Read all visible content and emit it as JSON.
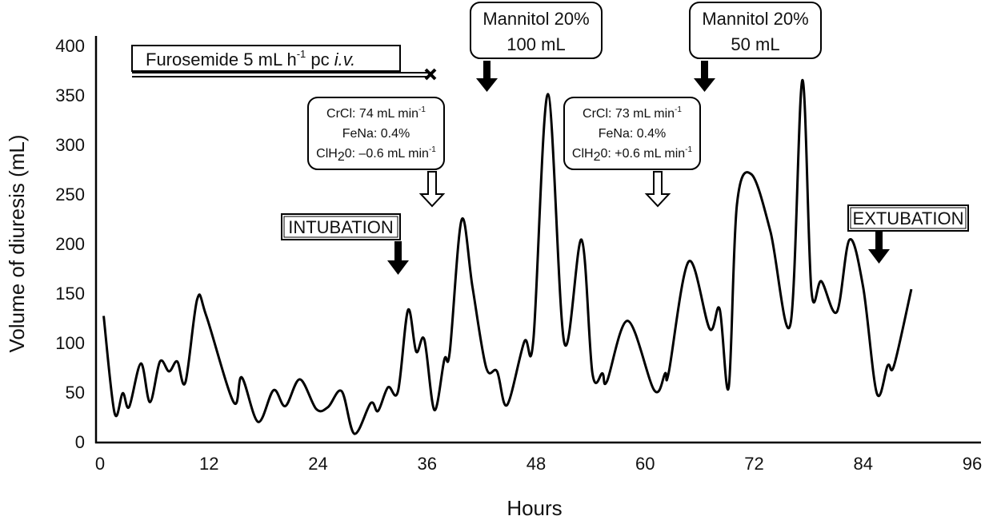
{
  "chart_data": {
    "type": "line",
    "title": "",
    "xlabel": "Hours",
    "ylabel": "Volume of diuresis (mL)",
    "xlim": [
      0,
      96
    ],
    "ylim": [
      0,
      400
    ],
    "xticks": [
      0,
      12,
      24,
      36,
      48,
      60,
      72,
      84,
      96
    ],
    "yticks": [
      0,
      50,
      100,
      150,
      200,
      250,
      300,
      350,
      400
    ],
    "grid": false,
    "line_color": "#000000",
    "series": [
      {
        "x": [
          0.4,
          1.6,
          2.5,
          3.2,
          4.5,
          5.5,
          6.6,
          7.6,
          8.5,
          9.4,
          10.7,
          11.7,
          14.7,
          15.6,
          17.4,
          19.1,
          20.4,
          22.0,
          23.8,
          25.1,
          26.6,
          28.0,
          29.8,
          30.6,
          31.7,
          32.8,
          33.9,
          34.8,
          35.7,
          36.8,
          37.9,
          38.5,
          39.8,
          41.0,
          42.5,
          43.7,
          44.8,
          46.7,
          47.7,
          49.3,
          51.1,
          53.0,
          54.2,
          55.3,
          55.8,
          58.1,
          61.0,
          62.2,
          62.6,
          64.8,
          67.1,
          68.2,
          69.2,
          70.1,
          71.7,
          73.8,
          76.0,
          77.3,
          78.3,
          79.4,
          81.1,
          82.5,
          84.0,
          85.5,
          86.7,
          87.4,
          89.3
        ],
        "y": [
          127,
          29,
          49,
          35,
          79,
          40,
          81,
          71,
          81,
          60,
          144,
          127,
          40,
          65,
          20,
          52,
          36,
          63,
          33,
          35,
          51,
          8,
          39,
          31,
          55,
          51,
          133,
          91,
          103,
          32,
          83,
          91,
          224,
          156,
          75,
          71,
          37,
          101,
          103,
          351,
          100,
          204,
          69,
          69,
          61,
          122,
          52,
          69,
          70,
          182,
          114,
          134,
          55,
          239,
          270,
          212,
          119,
          365,
          153,
          162,
          131,
          204,
          156,
          49,
          77,
          77,
          154
        ]
      }
    ],
    "annotations": {
      "furosemide": {
        "text": "Furosemide 5 mL h",
        "sup": "-1",
        "mid": " pc ",
        "italic": "i.v.",
        "start_hour": 3.5,
        "stop_hour": 36.4
      },
      "mannitol_1": {
        "line1": "Mannitol 20%",
        "line2": "100 mL",
        "hour": 42.6
      },
      "mannitol_2": {
        "line1": "Mannitol 20%",
        "line2": "50 mL",
        "hour": 66.5
      },
      "clearance_1": {
        "crcl": "CrCl: 74 mL min",
        "crcl_sup": "-1",
        "fena": "FeNa: 0.4%",
        "clh2o_a": "ClH",
        "clh2o_sub": "2",
        "clh2o_b": "0: –0.6 mL min",
        "clh2o_sup": "-1",
        "hour": 36.6
      },
      "clearance_2": {
        "crcl": "CrCl: 73 mL min",
        "crcl_sup": "-1",
        "fena": "FeNa: 0.4%",
        "clh2o_a": "ClH",
        "clh2o_sub": "2",
        "clh2o_b": "0: +0.6 mL min",
        "clh2o_sup": "-1",
        "hour": 61.4
      },
      "intubation": {
        "text": "INTUBATION",
        "hour": 32.8
      },
      "extubation": {
        "text": "EXTUBATION",
        "hour": 85.7
      }
    }
  }
}
